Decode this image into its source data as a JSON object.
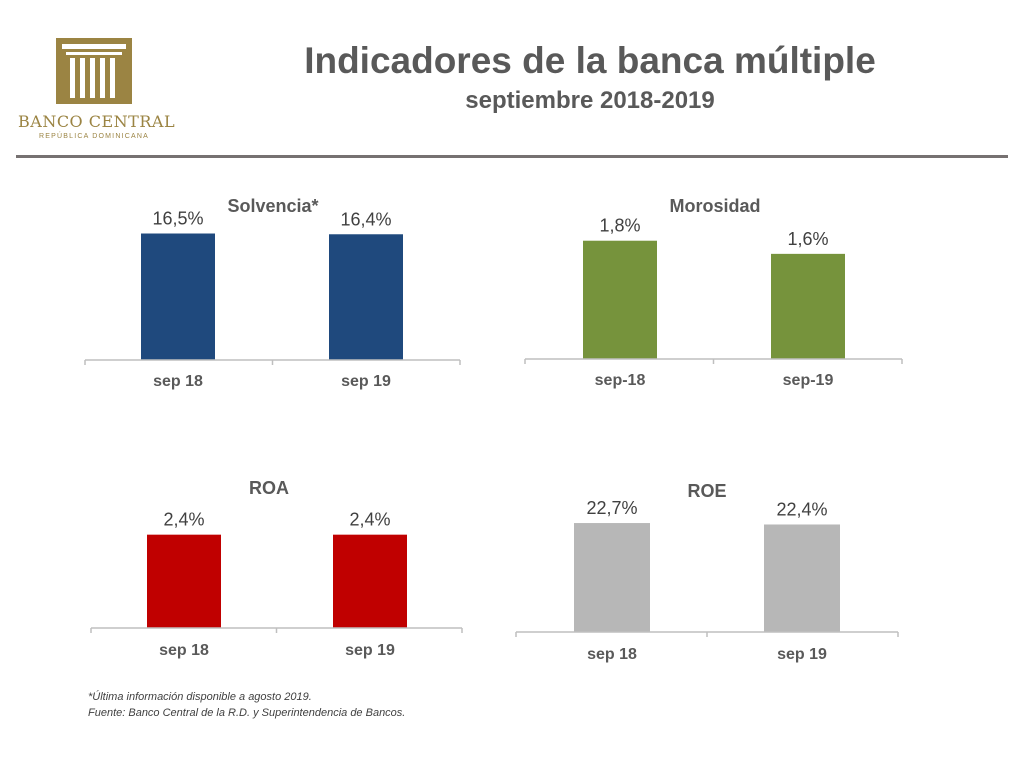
{
  "header": {
    "title": "Indicadores de la banca múltiple",
    "subtitle": "septiembre 2018-2019"
  },
  "logo": {
    "name": "BANCO CENTRAL",
    "subtitle": "REPÚBLICA DOMINICANA",
    "color": "#9b8443"
  },
  "chart_data": [
    {
      "type": "bar",
      "title": "Solvencia*",
      "categories": [
        "sep 18",
        "sep 19"
      ],
      "values": [
        16.5,
        16.4
      ],
      "labels": [
        "16,5%",
        "16,4%"
      ],
      "color": "#1f497d",
      "ylim": [
        0,
        18
      ]
    },
    {
      "type": "bar",
      "title": "Morosidad",
      "categories": [
        "sep-18",
        "sep-19"
      ],
      "values": [
        1.8,
        1.6
      ],
      "labels": [
        "1,8%",
        "1,6%"
      ],
      "color": "#76933c",
      "ylim": [
        0,
        2.1
      ]
    },
    {
      "type": "bar",
      "title": "ROA",
      "categories": [
        "sep 18",
        "sep 19"
      ],
      "values": [
        2.4,
        2.4
      ],
      "labels": [
        "2,4%",
        "2,4%"
      ],
      "color": "#c00000",
      "ylim": [
        0,
        2.7
      ]
    },
    {
      "type": "bar",
      "title": "ROE",
      "categories": [
        "sep 18",
        "sep 19"
      ],
      "values": [
        22.7,
        22.4
      ],
      "labels": [
        "22,7%",
        "22,4%"
      ],
      "color": "#b7b7b7",
      "ylim": [
        0,
        25
      ]
    }
  ],
  "footnotes": [
    "*Última información disponible a agosto 2019.",
    "Fuente: Banco Central de la R.D. y Superintendencia de Bancos."
  ]
}
